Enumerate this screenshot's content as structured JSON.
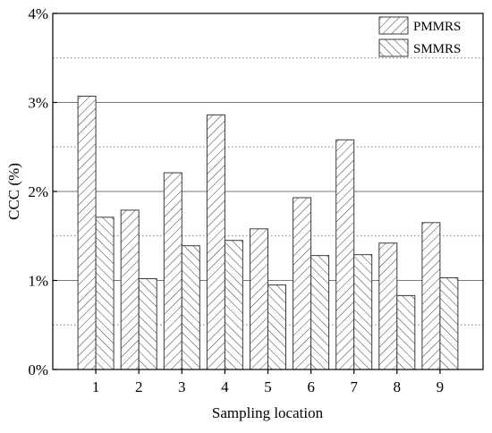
{
  "chart_data": {
    "type": "bar",
    "categories": [
      "1",
      "2",
      "3",
      "4",
      "5",
      "6",
      "7",
      "8",
      "9"
    ],
    "series": [
      {
        "name": "PMMRS",
        "values": [
          3.07,
          1.79,
          2.21,
          2.86,
          1.58,
          1.93,
          2.58,
          1.42,
          1.65
        ]
      },
      {
        "name": "SMMRS",
        "values": [
          1.71,
          1.02,
          1.39,
          1.45,
          0.95,
          1.28,
          1.29,
          0.83,
          1.03
        ]
      }
    ],
    "xlabel": "Sampling location",
    "ylabel": "CCC (%)",
    "ylim": [
      0,
      4
    ],
    "yticks": [
      "0%",
      "1%",
      "2%",
      "3%",
      "4%"
    ],
    "grid": {
      "major": "solid",
      "minor": "dotted"
    },
    "legend_position": "top-right",
    "colors": {
      "bar_fill": "#ffffff",
      "bar_stroke": "#3a3a3a",
      "axis": "#000000",
      "grid": "#7a7a7a"
    }
  }
}
